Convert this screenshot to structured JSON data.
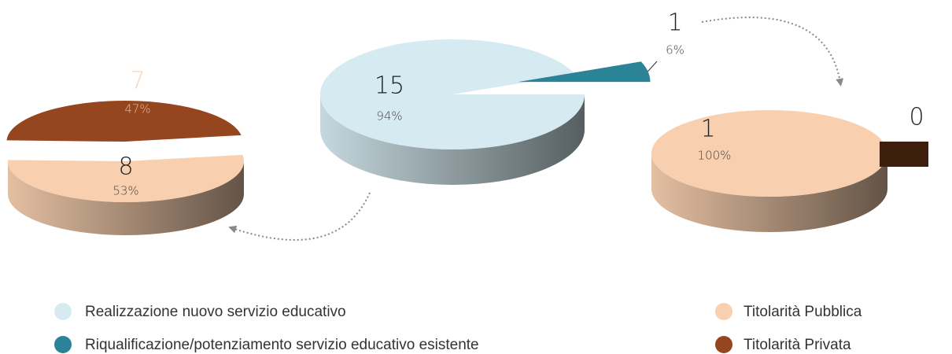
{
  "chart_data": [
    {
      "type": "pie",
      "categories": [
        "Realizzazione nuovo servizio educativo",
        "Riqualificazione/potenziamento servizio educativo esistente"
      ],
      "values": [
        94,
        6
      ],
      "value_labels": [
        "94%",
        "6%"
      ],
      "counts": [
        15,
        1
      ],
      "colors": [
        "#d6ebf1",
        "#2a8396"
      ]
    },
    {
      "type": "pie",
      "categories": [
        "Titolarità Pubblica",
        "Titolarità Privata"
      ],
      "values": [
        53,
        47
      ],
      "value_labels": [
        "53%",
        "47%"
      ],
      "counts": [
        8,
        7
      ],
      "colors": [
        "#f8d0b0",
        "#96461f"
      ]
    },
    {
      "type": "pie",
      "values": [
        100,
        0
      ],
      "value_labels": [
        "100%",
        null
      ],
      "counts": [
        1,
        0
      ],
      "colors": [
        "#f8d0b0",
        "#3e1f0e"
      ]
    }
  ]
}
